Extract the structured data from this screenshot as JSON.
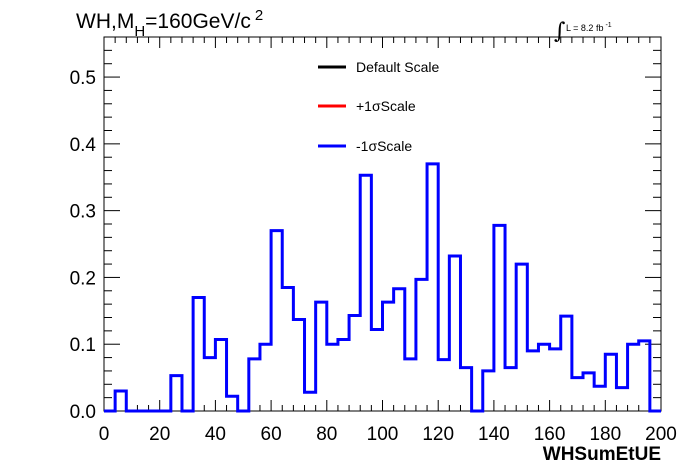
{
  "chart_data": {
    "type": "line",
    "title_main": "WH,M",
    "title_sub": "H",
    "title_rest": "=160GeV/c",
    "title_sup": "2",
    "luminosity": {
      "integral": "∫",
      "text": "L = 8.2 fb",
      "sup": "-1"
    },
    "xlabel": "WHSumEtUE",
    "ylabel": "",
    "xlim": [
      0,
      200
    ],
    "ylim": [
      0,
      0.56
    ],
    "x_ticks": [
      0,
      20,
      40,
      60,
      80,
      100,
      120,
      140,
      160,
      180,
      200
    ],
    "x_tick_labels": [
      "0",
      "20",
      "40",
      "60",
      "80",
      "100",
      "120",
      "140",
      "160",
      "180",
      "200"
    ],
    "y_ticks": [
      0.0,
      0.1,
      0.2,
      0.3,
      0.4,
      0.5
    ],
    "y_tick_labels": [
      "0.0",
      "0.1",
      "0.2",
      "0.3",
      "0.4",
      "0.5"
    ],
    "bin_width": 4,
    "bin_edges_start": 0,
    "legend": [
      {
        "label": "Default Scale",
        "color": "#000000"
      },
      {
        "label": "+1σScale",
        "color": "#ff0000"
      },
      {
        "label": "-1σScale",
        "color": "#0000ff"
      }
    ],
    "series": [
      {
        "name": "-1σScale",
        "color": "#0000ff",
        "values": [
          0.0,
          0.03,
          0.0,
          0.0,
          0.0,
          0.0,
          0.053,
          0.0,
          0.17,
          0.08,
          0.107,
          0.022,
          0.0,
          0.078,
          0.1,
          0.27,
          0.185,
          0.137,
          0.028,
          0.163,
          0.1,
          0.107,
          0.143,
          0.353,
          0.122,
          0.163,
          0.183,
          0.078,
          0.197,
          0.37,
          0.077,
          0.232,
          0.065,
          0.0,
          0.06,
          0.278,
          0.065,
          0.22,
          0.09,
          0.1,
          0.093,
          0.142,
          0.05,
          0.057,
          0.037,
          0.085,
          0.035,
          0.1,
          0.105,
          0.0
        ]
      }
    ],
    "grid": false
  }
}
